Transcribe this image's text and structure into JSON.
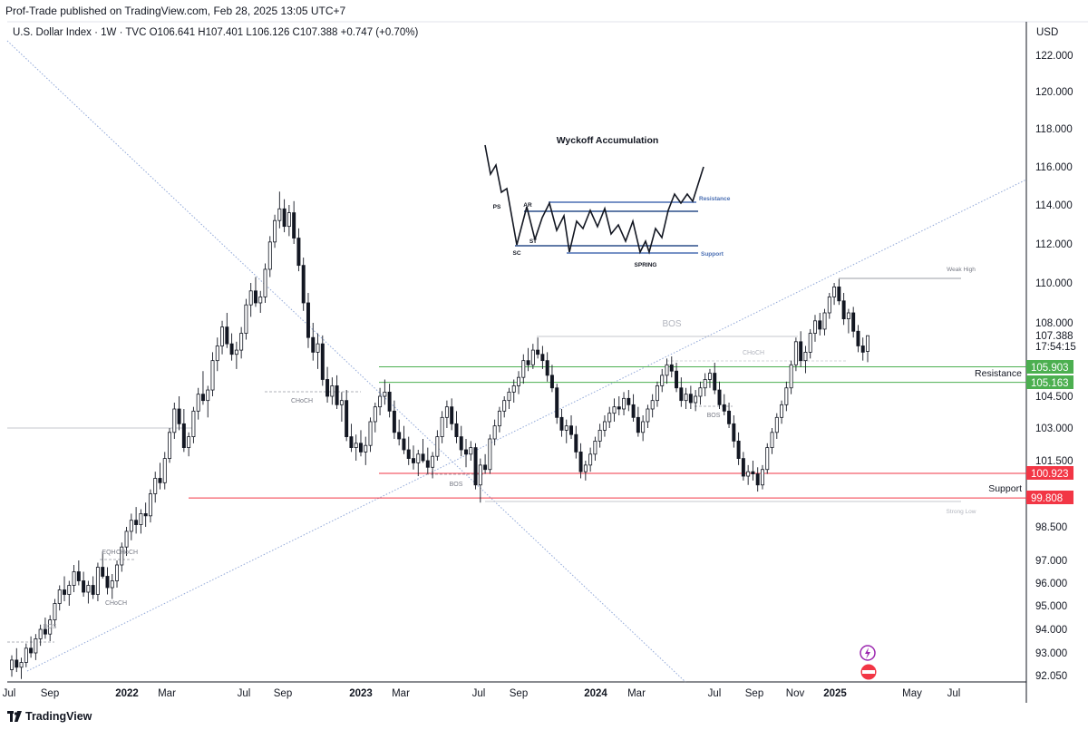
{
  "header": {
    "publisher": "Prof-Trade published on TradingView.com, Feb 28, 2025 13:05 UTC+7",
    "legend": "U.S. Dollar Index · 1W · TVC  O106.641  H107.401  L106.126  C107.388  +0.747 (+0.70%)",
    "currency": "USD"
  },
  "footer": {
    "brand": "TradingView"
  },
  "chart_data": {
    "type": "candlestick",
    "symbol": "U.S. Dollar Index",
    "timeframe": "1W",
    "y_ticks": [
      "122.000",
      "120.000",
      "118.000",
      "116.000",
      "114.000",
      "112.000",
      "110.000",
      "108.000",
      "104.500",
      "103.000",
      "101.500",
      "98.500",
      "97.000",
      "96.000",
      "95.000",
      "94.000",
      "93.000",
      "92.050"
    ],
    "y_tick_values": [
      122,
      120,
      118,
      116,
      114,
      112,
      110,
      108,
      104.5,
      103,
      101.5,
      98.5,
      97,
      96,
      95,
      94,
      93,
      92.05
    ],
    "x_labels": [
      "Jul",
      "Sep",
      "2022",
      "Mar",
      "Jul",
      "Sep",
      "2023",
      "Mar",
      "Jul",
      "Sep",
      "2024",
      "Mar",
      "Jul",
      "Sep",
      "Nov",
      "2025",
      "May",
      "Jul"
    ],
    "x_label_bold": [
      false,
      false,
      true,
      false,
      false,
      false,
      true,
      false,
      false,
      false,
      true,
      false,
      false,
      false,
      false,
      true,
      false,
      false
    ],
    "price_tags": [
      {
        "value": "107.388",
        "label": "",
        "kind": "last"
      },
      {
        "value": "17:54:15",
        "label": "",
        "kind": "countdown"
      },
      {
        "value": "105.903",
        "label": "",
        "kind": "green"
      },
      {
        "value": "105.163",
        "label": "Resistance",
        "kind": "green"
      },
      {
        "value": "100.923",
        "label": "",
        "kind": "red"
      },
      {
        "value": "99.808",
        "label": "Support",
        "kind": "red"
      }
    ],
    "levels": [
      {
        "value": 105.903,
        "start": "2023-01",
        "color": "#4caf50"
      },
      {
        "value": 105.163,
        "start": "2023-01",
        "color": "#4caf50"
      },
      {
        "value": 100.923,
        "start": "2023-01",
        "color": "#f23645"
      },
      {
        "value": 99.808,
        "start": "2022-02",
        "color": "#f23645"
      }
    ],
    "annotations": [
      "BOS",
      "CHoCH",
      "EQH",
      "CHoCH",
      "CHoCH",
      "BOS",
      "CHoCH",
      "BOS",
      "BOS",
      "BOS",
      "Weak High",
      "Strong Low"
    ],
    "inset": {
      "title": "Wyckoff Accumulation",
      "labels": [
        "PS",
        "AR",
        "SC",
        "ST",
        "SPRING"
      ],
      "resistance_label": "Resistance",
      "support_label": "Support"
    },
    "candles": [
      [
        92.3,
        92.9,
        92.0,
        92.7
      ],
      [
        92.7,
        93.2,
        92.2,
        92.4
      ],
      [
        92.4,
        92.8,
        91.9,
        92.6
      ],
      [
        92.6,
        93.4,
        92.4,
        93.2
      ],
      [
        93.2,
        93.7,
        92.8,
        93.0
      ],
      [
        93.0,
        93.8,
        92.7,
        93.6
      ],
      [
        93.6,
        94.2,
        93.3,
        94.0
      ],
      [
        94.0,
        94.5,
        93.6,
        93.8
      ],
      [
        93.8,
        94.6,
        93.5,
        94.4
      ],
      [
        94.4,
        95.3,
        94.1,
        95.1
      ],
      [
        95.1,
        95.9,
        94.8,
        95.7
      ],
      [
        95.7,
        96.3,
        95.2,
        95.5
      ],
      [
        95.5,
        96.1,
        95.0,
        95.9
      ],
      [
        95.9,
        96.8,
        95.6,
        96.5
      ],
      [
        96.5,
        97.0,
        95.9,
        96.1
      ],
      [
        96.1,
        96.5,
        95.4,
        95.6
      ],
      [
        95.6,
        96.1,
        95.1,
        95.9
      ],
      [
        95.9,
        96.3,
        95.3,
        95.5
      ],
      [
        95.5,
        96.9,
        95.2,
        96.7
      ],
      [
        96.7,
        97.4,
        96.2,
        96.3
      ],
      [
        96.3,
        96.7,
        95.5,
        95.8
      ],
      [
        95.8,
        96.4,
        95.3,
        96.1
      ],
      [
        96.1,
        97.0,
        95.8,
        96.8
      ],
      [
        96.8,
        97.8,
        96.5,
        97.6
      ],
      [
        97.6,
        98.5,
        97.2,
        98.3
      ],
      [
        98.3,
        99.1,
        97.9,
        98.8
      ],
      [
        98.8,
        99.4,
        98.2,
        98.6
      ],
      [
        98.6,
        99.3,
        98.2,
        99.1
      ],
      [
        99.1,
        99.6,
        98.5,
        99.0
      ],
      [
        99.0,
        100.2,
        98.7,
        100.0
      ],
      [
        100.0,
        101.0,
        99.6,
        100.7
      ],
      [
        100.7,
        101.4,
        100.2,
        100.5
      ],
      [
        100.5,
        101.9,
        100.2,
        101.6
      ],
      [
        101.6,
        103.0,
        101.4,
        102.8
      ],
      [
        102.8,
        104.2,
        102.5,
        103.9
      ],
      [
        103.9,
        104.5,
        102.9,
        103.2
      ],
      [
        103.2,
        103.9,
        101.9,
        102.1
      ],
      [
        102.1,
        102.8,
        101.7,
        102.6
      ],
      [
        102.6,
        104.0,
        102.3,
        103.8
      ],
      [
        103.8,
        104.9,
        103.4,
        104.6
      ],
      [
        104.6,
        105.7,
        104.1,
        104.3
      ],
      [
        104.3,
        105.0,
        103.5,
        104.8
      ],
      [
        104.8,
        106.6,
        104.5,
        106.2
      ],
      [
        106.2,
        107.3,
        105.7,
        106.9
      ],
      [
        106.9,
        108.1,
        106.5,
        107.8
      ],
      [
        107.8,
        108.5,
        106.8,
        107.0
      ],
      [
        107.0,
        107.5,
        106.2,
        106.5
      ],
      [
        106.5,
        107.1,
        105.8,
        106.7
      ],
      [
        106.7,
        107.8,
        106.3,
        107.5
      ],
      [
        107.5,
        109.2,
        107.2,
        108.9
      ],
      [
        108.9,
        110.0,
        108.3,
        109.6
      ],
      [
        109.6,
        110.3,
        108.8,
        109.0
      ],
      [
        109.0,
        109.6,
        108.5,
        109.3
      ],
      [
        109.3,
        111.0,
        109.0,
        110.7
      ],
      [
        110.7,
        112.4,
        110.3,
        112.1
      ],
      [
        112.1,
        113.5,
        111.8,
        113.2
      ],
      [
        113.2,
        114.7,
        112.8,
        113.8
      ],
      [
        113.8,
        114.3,
        112.6,
        112.9
      ],
      [
        112.9,
        114.0,
        112.4,
        113.6
      ],
      [
        113.6,
        114.2,
        112.0,
        112.3
      ],
      [
        112.3,
        112.8,
        110.6,
        110.9
      ],
      [
        110.9,
        111.3,
        108.6,
        109.0
      ],
      [
        109.0,
        109.5,
        106.8,
        107.3
      ],
      [
        107.3,
        108.0,
        106.2,
        106.6
      ],
      [
        106.6,
        107.5,
        105.8,
        107.0
      ],
      [
        107.0,
        107.4,
        105.0,
        105.3
      ],
      [
        105.3,
        105.9,
        104.2,
        104.5
      ],
      [
        104.5,
        105.4,
        104.1,
        105.0
      ],
      [
        105.0,
        105.5,
        103.9,
        104.1
      ],
      [
        104.1,
        104.7,
        103.3,
        104.3
      ],
      [
        104.3,
        104.8,
        102.4,
        102.6
      ],
      [
        102.6,
        103.2,
        101.9,
        102.1
      ],
      [
        102.1,
        102.7,
        101.5,
        102.3
      ],
      [
        102.3,
        102.9,
        101.7,
        101.9
      ],
      [
        101.9,
        102.6,
        101.3,
        102.2
      ],
      [
        102.2,
        103.5,
        101.9,
        103.3
      ],
      [
        103.3,
        104.2,
        102.8,
        104.0
      ],
      [
        104.0,
        104.9,
        103.6,
        104.5
      ],
      [
        104.5,
        105.3,
        104.1,
        104.7
      ],
      [
        104.7,
        105.1,
        103.5,
        103.8
      ],
      [
        103.8,
        104.3,
        102.5,
        102.8
      ],
      [
        102.8,
        103.4,
        102.2,
        102.5
      ],
      [
        102.5,
        103.1,
        101.8,
        102.0
      ],
      [
        102.0,
        102.6,
        101.3,
        101.6
      ],
      [
        101.6,
        102.2,
        101.1,
        101.4
      ],
      [
        101.4,
        102.0,
        100.8,
        101.8
      ],
      [
        101.8,
        102.5,
        101.4,
        101.5
      ],
      [
        101.5,
        102.1,
        100.9,
        101.2
      ],
      [
        101.2,
        101.9,
        100.7,
        101.7
      ],
      [
        101.7,
        102.9,
        101.5,
        102.6
      ],
      [
        102.6,
        103.8,
        102.3,
        103.5
      ],
      [
        103.5,
        104.3,
        103.0,
        104.0
      ],
      [
        104.0,
        104.4,
        102.9,
        103.2
      ],
      [
        103.2,
        103.8,
        102.3,
        102.6
      ],
      [
        102.6,
        103.1,
        101.7,
        102.0
      ],
      [
        102.0,
        102.5,
        101.2,
        101.8
      ],
      [
        101.8,
        102.4,
        101.5,
        102.1
      ],
      [
        102.1,
        102.3,
        100.2,
        100.4
      ],
      [
        100.4,
        101.6,
        99.6,
        101.3
      ],
      [
        101.3,
        101.8,
        100.9,
        101.1
      ],
      [
        101.1,
        102.7,
        100.9,
        102.5
      ],
      [
        102.5,
        103.4,
        102.2,
        103.1
      ],
      [
        103.1,
        104.0,
        102.8,
        103.8
      ],
      [
        103.8,
        104.5,
        103.5,
        104.3
      ],
      [
        104.3,
        104.9,
        103.9,
        104.7
      ],
      [
        104.7,
        105.3,
        104.2,
        105.0
      ],
      [
        105.0,
        105.7,
        104.6,
        105.4
      ],
      [
        105.4,
        106.5,
        105.1,
        106.2
      ],
      [
        106.2,
        106.8,
        105.7,
        106.0
      ],
      [
        106.0,
        107.0,
        105.8,
        106.7
      ],
      [
        106.7,
        107.3,
        106.3,
        106.5
      ],
      [
        106.5,
        106.9,
        105.8,
        106.2
      ],
      [
        106.2,
        106.6,
        105.2,
        105.5
      ],
      [
        105.5,
        106.0,
        104.7,
        104.9
      ],
      [
        104.9,
        105.1,
        103.2,
        103.5
      ],
      [
        103.5,
        103.9,
        102.6,
        102.9
      ],
      [
        102.9,
        103.4,
        102.3,
        103.1
      ],
      [
        103.1,
        103.6,
        102.5,
        102.7
      ],
      [
        102.7,
        103.1,
        101.6,
        101.9
      ],
      [
        101.9,
        102.3,
        100.7,
        101.0
      ],
      [
        101.0,
        101.5,
        100.6,
        101.3
      ],
      [
        101.3,
        102.1,
        101.0,
        101.8
      ],
      [
        101.8,
        102.6,
        101.5,
        102.4
      ],
      [
        102.4,
        103.2,
        102.1,
        102.9
      ],
      [
        102.9,
        103.6,
        102.6,
        103.3
      ],
      [
        103.3,
        104.0,
        103.0,
        103.7
      ],
      [
        103.7,
        104.4,
        103.3,
        104.0
      ],
      [
        104.0,
        104.5,
        103.6,
        103.9
      ],
      [
        103.9,
        104.7,
        103.6,
        104.4
      ],
      [
        104.4,
        104.8,
        103.8,
        104.1
      ],
      [
        104.1,
        104.6,
        103.3,
        103.5
      ],
      [
        103.5,
        104.0,
        102.6,
        102.8
      ],
      [
        102.8,
        103.6,
        102.4,
        103.3
      ],
      [
        103.3,
        104.1,
        103.0,
        103.9
      ],
      [
        103.9,
        104.6,
        103.5,
        104.3
      ],
      [
        104.3,
        105.2,
        104.0,
        105.0
      ],
      [
        105.0,
        105.8,
        104.7,
        105.5
      ],
      [
        105.5,
        106.3,
        105.1,
        106.0
      ],
      [
        106.0,
        106.4,
        105.4,
        105.7
      ],
      [
        105.7,
        106.1,
        104.7,
        104.9
      ],
      [
        104.9,
        105.4,
        104.0,
        104.3
      ],
      [
        104.3,
        104.9,
        103.9,
        104.6
      ],
      [
        104.6,
        105.0,
        103.9,
        104.2
      ],
      [
        104.2,
        104.8,
        103.8,
        104.5
      ],
      [
        104.5,
        105.2,
        104.1,
        104.9
      ],
      [
        104.9,
        105.6,
        104.5,
        105.3
      ],
      [
        105.3,
        105.8,
        104.9,
        105.6
      ],
      [
        105.6,
        106.1,
        104.6,
        104.8
      ],
      [
        104.8,
        105.2,
        103.9,
        104.1
      ],
      [
        104.1,
        104.6,
        103.6,
        103.8
      ],
      [
        103.8,
        104.2,
        103.0,
        103.2
      ],
      [
        103.2,
        103.6,
        102.1,
        102.4
      ],
      [
        102.4,
        102.8,
        101.3,
        101.6
      ],
      [
        101.6,
        101.9,
        100.6,
        100.8
      ],
      [
        100.8,
        101.3,
        100.4,
        101.0
      ],
      [
        101.0,
        101.5,
        100.6,
        100.9
      ],
      [
        100.9,
        101.2,
        100.1,
        100.4
      ],
      [
        100.4,
        101.3,
        100.2,
        101.1
      ],
      [
        101.1,
        102.3,
        100.9,
        102.1
      ],
      [
        102.1,
        103.0,
        101.8,
        102.8
      ],
      [
        102.8,
        103.7,
        102.5,
        103.5
      ],
      [
        103.5,
        104.3,
        103.2,
        104.1
      ],
      [
        104.1,
        105.2,
        103.8,
        104.9
      ],
      [
        104.9,
        106.2,
        104.6,
        106.0
      ],
      [
        106.0,
        107.3,
        105.7,
        107.1
      ],
      [
        107.1,
        107.6,
        105.9,
        106.2
      ],
      [
        106.2,
        106.9,
        105.6,
        106.6
      ],
      [
        106.6,
        107.7,
        106.3,
        107.5
      ],
      [
        107.5,
        108.4,
        107.1,
        108.1
      ],
      [
        108.1,
        108.5,
        107.4,
        107.7
      ],
      [
        107.7,
        108.7,
        107.4,
        108.5
      ],
      [
        108.5,
        109.5,
        108.2,
        109.3
      ],
      [
        109.3,
        110.0,
        108.9,
        109.8
      ],
      [
        109.8,
        110.2,
        108.9,
        109.1
      ],
      [
        109.1,
        109.5,
        107.9,
        108.2
      ],
      [
        108.2,
        108.7,
        107.5,
        108.5
      ],
      [
        108.5,
        108.8,
        107.3,
        107.6
      ],
      [
        107.6,
        107.9,
        106.6,
        106.9
      ],
      [
        106.9,
        107.3,
        106.2,
        106.6
      ],
      [
        106.641,
        107.401,
        106.126,
        107.388
      ]
    ]
  }
}
